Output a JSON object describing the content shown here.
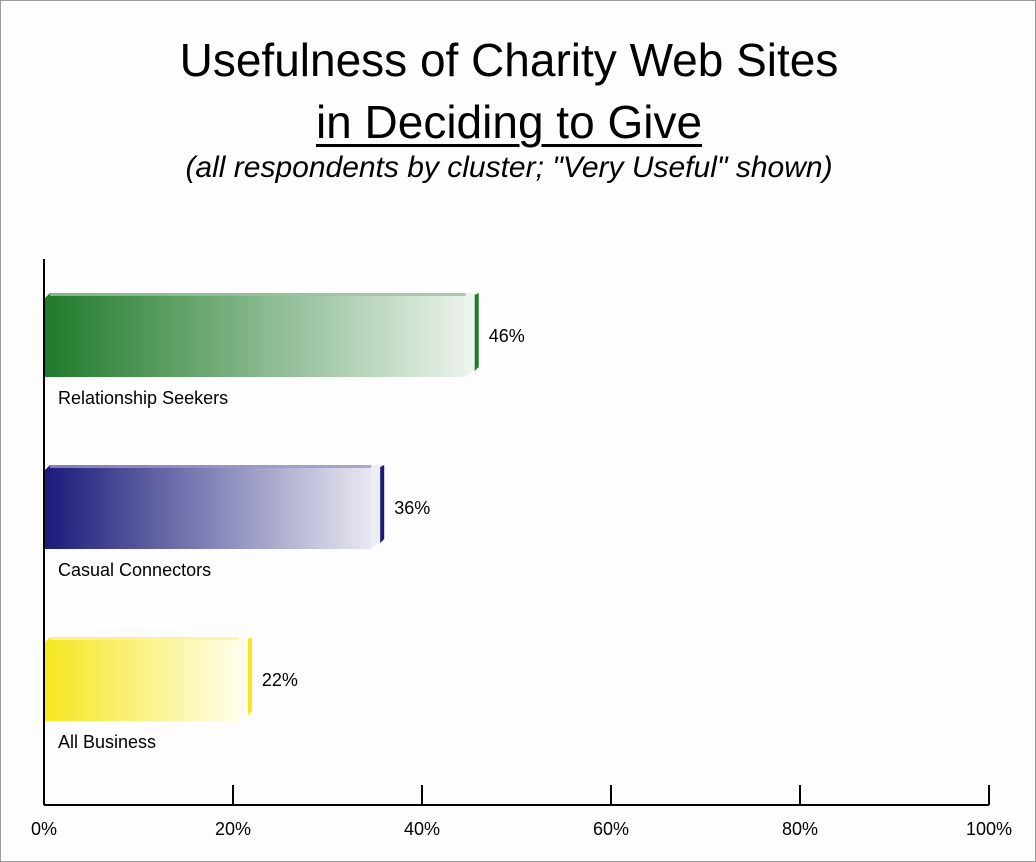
{
  "chart_data": {
    "type": "bar",
    "orientation": "horizontal",
    "title_line1": "Usefulness of Charity Web Sites",
    "title_line2": "in Deciding to Give",
    "subtitle": "(all respondents by cluster; \"Very Useful\" shown)",
    "categories": [
      "Relationship Seekers",
      "Casual Connectors",
      "All Business"
    ],
    "values": [
      46,
      36,
      22
    ],
    "data_labels": [
      "46%",
      "36%",
      "22%"
    ],
    "colors": [
      "#1f7a2a",
      "#1a1a7a",
      "#f5e61e"
    ],
    "xlim": [
      0,
      100
    ],
    "xticks": [
      0,
      20,
      40,
      60,
      80,
      100
    ],
    "xtick_labels": [
      "0%",
      "20%",
      "40%",
      "60%",
      "80%",
      "100%"
    ],
    "grid": false,
    "legend": "none"
  }
}
